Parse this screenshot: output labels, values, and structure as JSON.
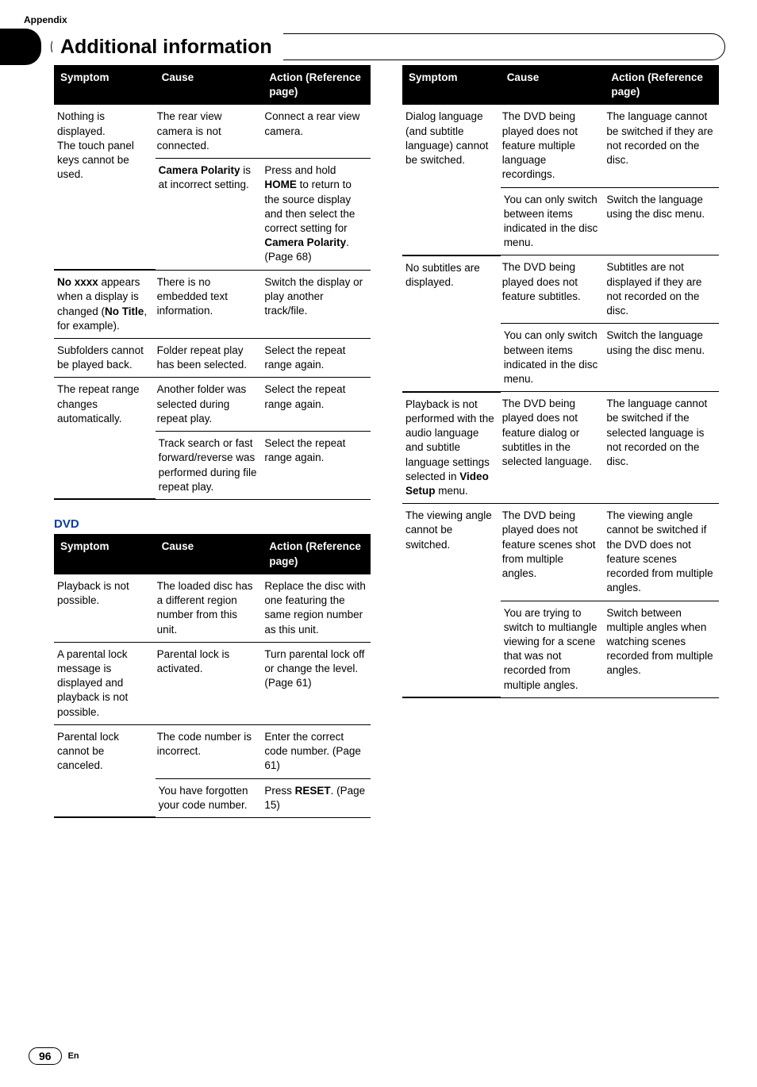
{
  "header": {
    "appendix": "Appendix",
    "title": "Additional information"
  },
  "footer": {
    "page_number": "96",
    "lang": "En"
  },
  "tables": {
    "general": {
      "head": {
        "symptom": "Symptom",
        "cause": "Cause",
        "action": "Action (Reference page)"
      },
      "rows": [
        {
          "s_html": "Nothing is displayed.<br>The touch panel keys cannot be used.",
          "s_rows": 2,
          "c_html": "The rear view camera is not connected.",
          "a_html": "Connect a rear view camera.",
          "thick": false
        },
        {
          "c_html": "<span class='nb'>Camera Polarity</span> is at incorrect setting.",
          "a_html": "Press and hold <span class='nb'>HOME</span> to return to the source display and then select the correct setting for <span class='nb'>Camera Polarity</span>. (Page 68)",
          "thick": true
        },
        {
          "s_html": "<span class='nb'>No xxxx</span> appears when a display is changed (<span class='nb'>No Title</span>, for example).",
          "c_html": "There is no embedded text information.",
          "a_html": "Switch the display or play another track/file.",
          "thick": true
        },
        {
          "s_html": "Subfolders cannot be played back.",
          "c_html": "Folder repeat play has been selected.",
          "a_html": "Select the repeat range again.",
          "thick": true
        },
        {
          "s_html": "The repeat range changes automatically.",
          "s_rows": 2,
          "c_html": "Another folder was selected during repeat play.",
          "a_html": "Select the repeat range again.",
          "thick": false
        },
        {
          "c_html": "Track search or fast forward/reverse was performed during file repeat play.",
          "a_html": "Select the repeat range again.",
          "thick": true
        }
      ]
    },
    "dvd_left": {
      "title": "DVD",
      "head": {
        "symptom": "Symptom",
        "cause": "Cause",
        "action": "Action (Reference page)"
      },
      "rows": [
        {
          "s_html": "Playback is not possible.",
          "c_html": "The loaded disc has a different region number from this unit.",
          "a_html": "Replace the disc with one featuring the same region number as this unit.",
          "thick": true
        },
        {
          "s_html": "A parental lock message is displayed and playback is not possible.",
          "c_html": "Parental lock is activated.",
          "a_html": "Turn parental lock off or change the level. (Page 61)",
          "thick": true
        },
        {
          "s_html": "Parental lock cannot be canceled.",
          "s_rows": 2,
          "c_html": "The code number is incorrect.",
          "a_html": "Enter the correct code number. (Page 61)",
          "thick": false
        },
        {
          "c_html": "You have forgotten your code number.",
          "a_html": "Press <span class='nb'>RESET</span>. (Page 15)",
          "thick": true
        }
      ]
    },
    "dvd_right": {
      "head": {
        "symptom": "Symptom",
        "cause": "Cause",
        "action": "Action (Reference page)"
      },
      "rows": [
        {
          "s_html": "Dialog language (and subtitle language) cannot be switched.",
          "s_rows": 2,
          "c_html": "The DVD being played does not feature multiple language recordings.",
          "a_html": "The language cannot be switched if they are not recorded on the disc.",
          "thick": false
        },
        {
          "c_html": "You can only switch between items indicated in the disc menu.",
          "a_html": "Switch the language using the disc menu.",
          "thick": true
        },
        {
          "s_html": "No subtitles are displayed.",
          "s_rows": 2,
          "c_html": "The DVD being played does not feature subtitles.",
          "a_html": "Subtitles are not displayed if they are not recorded on the disc.",
          "thick": false
        },
        {
          "c_html": "You can only switch between items indicated in the disc menu.",
          "a_html": "Switch the language using the disc menu.",
          "thick": true
        },
        {
          "s_html": "Playback is not performed with the audio language and subtitle language settings selected in <span class='nb'>Video Setup</span> menu.",
          "c_html": "The DVD being played does not feature dialog or subtitles in the selected language.",
          "a_html": "The language cannot be switched if the selected language is not recorded on the disc.",
          "thick": true
        },
        {
          "s_html": "The viewing angle cannot be switched.",
          "s_rows": 2,
          "c_html": "The DVD being played does not feature scenes shot from multiple angles.",
          "a_html": "The viewing angle cannot be switched if the DVD does not feature scenes recorded from multiple angles.",
          "thick": false
        },
        {
          "c_html": "You are trying to switch to multiangle viewing for a scene that was not recorded from multiple angles.",
          "a_html": "Switch between multiple angles when watching scenes recorded from multiple angles.",
          "thick": true
        }
      ]
    }
  }
}
